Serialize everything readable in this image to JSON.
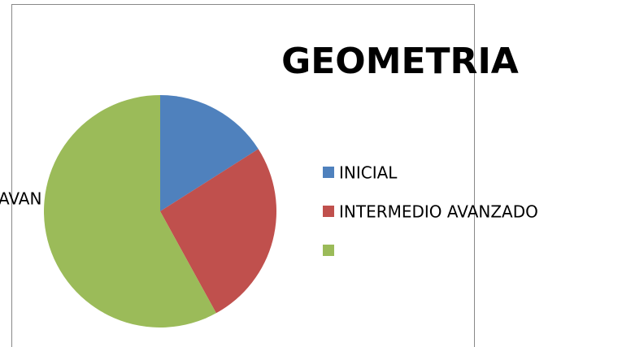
{
  "chart_data": {
    "type": "pie",
    "title": "GEOMETRIA",
    "categories": [
      "INICIAL",
      "INTERMEDIO AVANZADO",
      null
    ],
    "values": [
      16,
      26,
      58
    ],
    "colors": [
      "#4f81bd",
      "#c0504d",
      "#9bbb59"
    ],
    "annotations": [
      "AVAN"
    ],
    "legend": "right"
  }
}
